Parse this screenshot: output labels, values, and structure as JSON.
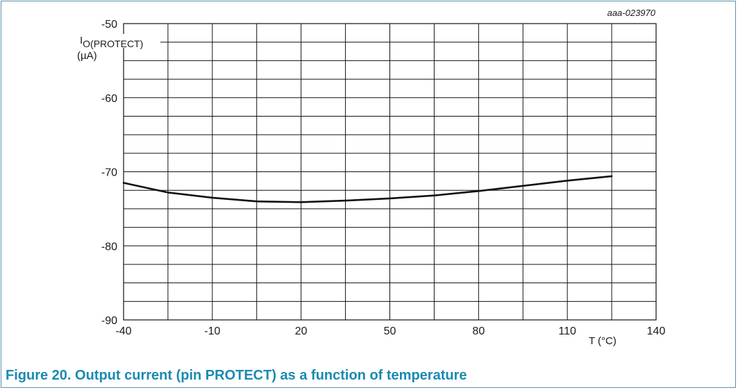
{
  "figure": {
    "caption": "Figure 20. Output current (pin PROTECT) as a function of temperature",
    "code": "aaa-023970"
  },
  "chart_data": {
    "type": "line",
    "ylabel_main": "I",
    "ylabel_sub": "O(PROTECT)",
    "ylabel_unit": "(µA)",
    "xlabel": "T (°C)",
    "xlim": [
      -40,
      140
    ],
    "ylim": [
      -90,
      -50
    ],
    "x_ticks": [
      -40,
      -10,
      20,
      50,
      80,
      110,
      140
    ],
    "y_ticks": [
      -90,
      -80,
      -70,
      -60,
      -50
    ],
    "x_minor_step": 15,
    "y_minor_step": 2.5,
    "grid": true,
    "series": [
      {
        "x": [
          -40,
          -25,
          -10,
          5,
          20,
          35,
          50,
          65,
          80,
          95,
          110,
          125
        ],
        "y": [
          -71.5,
          -72.8,
          -73.5,
          -74.0,
          -74.1,
          -73.9,
          -73.6,
          -73.2,
          -72.6,
          -71.9,
          -71.2,
          -70.6
        ]
      }
    ],
    "colors": {
      "line": "#111111",
      "grid": "#111111",
      "frame": "#5a93a5",
      "caption": "#1a8ab0"
    }
  }
}
